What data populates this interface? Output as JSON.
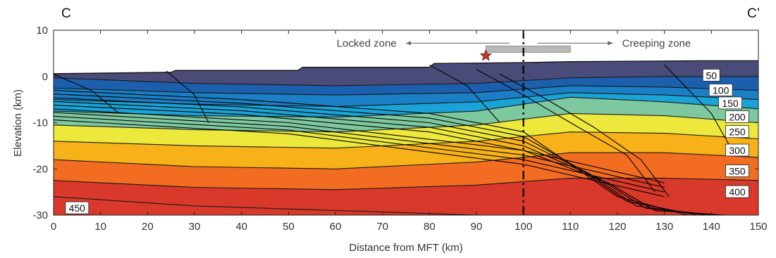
{
  "chart_data": {
    "type": "area",
    "title": "",
    "xlabel": "Distance from MFT (km)",
    "ylabel": "Elevation (km)",
    "xlim": [
      0,
      150
    ],
    "ylim": [
      -30,
      10
    ],
    "xticks": [
      0,
      10,
      20,
      30,
      40,
      50,
      60,
      70,
      80,
      90,
      100,
      110,
      120,
      130,
      140,
      150
    ],
    "yticks": [
      10,
      0,
      -10,
      -20,
      -30
    ],
    "grid": false,
    "corner_labels": {
      "left": "C",
      "right": "C’"
    },
    "annotations": {
      "locked_zone": "Locked zone",
      "creeping_zone": "Creeping zone",
      "divider_x": 100,
      "epicenter": {
        "x": 92,
        "y": 4.5,
        "color": "#c0392b"
      },
      "gray_bar": {
        "x": [
          92,
          110
        ],
        "y": [
          5.2,
          6.6
        ],
        "color": "#b8b8b8"
      }
    },
    "topography": {
      "x": [
        0,
        25,
        26,
        52,
        53,
        80,
        81,
        100,
        110,
        138,
        150
      ],
      "y": [
        0.6,
        0.9,
        1.3,
        1.3,
        2.0,
        2.0,
        2.8,
        3.0,
        3.2,
        3.4,
        3.4
      ],
      "color": "#4a4b78"
    },
    "isotherms": [
      {
        "label": "50",
        "color": "#2b3f8c",
        "x": [
          0,
          30,
          60,
          90,
          110,
          130,
          150
        ],
        "y": [
          -0.3,
          -1.5,
          -2,
          -1.5,
          -0.3,
          0,
          0
        ]
      },
      {
        "label": "100",
        "color": "#1c5fad",
        "x": [
          0,
          30,
          60,
          90,
          110,
          130,
          150
        ],
        "y": [
          -2.5,
          -3.5,
          -4,
          -3.5,
          -2,
          -2.3,
          -3
        ]
      },
      {
        "label": "150",
        "color": "#1a7fc4",
        "x": [
          0,
          30,
          60,
          90,
          110,
          130,
          150
        ],
        "y": [
          -5,
          -6,
          -6.5,
          -5.5,
          -3.5,
          -4,
          -5
        ]
      },
      {
        "label": "200",
        "color": "#19a3d6",
        "x": [
          0,
          30,
          60,
          90,
          110,
          130,
          150
        ],
        "y": [
          -7.5,
          -8.5,
          -8.8,
          -7.5,
          -4.5,
          -5.5,
          -7
        ]
      },
      {
        "label": "250",
        "color": "#7ec8a0",
        "x": [
          0,
          30,
          60,
          90,
          110,
          130,
          150
        ],
        "y": [
          -10.5,
          -11.5,
          -12,
          -10.5,
          -8,
          -8.5,
          -10
        ]
      },
      {
        "label": "300",
        "color": "#ece83c",
        "x": [
          0,
          30,
          60,
          90,
          110,
          130,
          150
        ],
        "y": [
          -14,
          -15,
          -15.5,
          -14,
          -12,
          -12.3,
          -13.5
        ]
      },
      {
        "label": "350",
        "color": "#f7b219",
        "x": [
          0,
          30,
          60,
          90,
          110,
          130,
          150
        ],
        "y": [
          -18,
          -19.5,
          -20,
          -18.5,
          -16.5,
          -16.5,
          -17.5
        ]
      },
      {
        "label": "400",
        "color": "#f26d21",
        "x": [
          0,
          30,
          60,
          90,
          110,
          130,
          150
        ],
        "y": [
          -22.5,
          -24,
          -24.5,
          -23.5,
          -22,
          -22,
          -22.5
        ]
      },
      {
        "label": "450",
        "color": "#d8392b",
        "x": [
          0,
          30,
          60,
          90,
          110,
          130,
          150
        ],
        "y": [
          -26,
          -28,
          -29,
          -30,
          -30,
          -30,
          -30
        ]
      }
    ],
    "isotherm_labels": [
      {
        "text": "50",
        "x": 140,
        "y": 0.2
      },
      {
        "text": "100",
        "x": 142,
        "y": -3
      },
      {
        "text": "150",
        "x": 144,
        "y": -5.8
      },
      {
        "text": "200",
        "x": 145.5,
        "y": -8.8
      },
      {
        "text": "250",
        "x": 145.5,
        "y": -12
      },
      {
        "text": "300",
        "x": 145.5,
        "y": -16
      },
      {
        "text": "350",
        "x": 145.5,
        "y": -20.5
      },
      {
        "text": "400",
        "x": 145.5,
        "y": -25
      },
      {
        "text": "450",
        "x": 5,
        "y": -28.5
      }
    ],
    "faults": [
      {
        "x": [
          0,
          40,
          80,
          100,
          110,
          120,
          135
        ],
        "y": [
          -3,
          -5,
          -8,
          -12,
          -19,
          -26,
          -30
        ]
      },
      {
        "x": [
          0,
          40,
          80,
          100,
          112,
          122,
          137
        ],
        "y": [
          -3.8,
          -5.8,
          -9,
          -13,
          -20,
          -27,
          -30
        ]
      },
      {
        "x": [
          0,
          40,
          80,
          100,
          114,
          124,
          139
        ],
        "y": [
          -4.6,
          -6.6,
          -10,
          -14,
          -21,
          -28,
          -30
        ]
      },
      {
        "x": [
          0,
          40,
          80,
          100,
          116,
          126,
          141
        ],
        "y": [
          -5.4,
          -7.4,
          -11,
          -15,
          -22,
          -28.5,
          -30
        ]
      },
      {
        "x": [
          0,
          40,
          80,
          100,
          118,
          128,
          143
        ],
        "y": [
          -6.2,
          -8.2,
          -12,
          -16,
          -23,
          -29,
          -30
        ]
      },
      {
        "x": [
          0,
          50,
          100,
          130
        ],
        "y": [
          -7,
          -10,
          -16,
          -23
        ]
      },
      {
        "x": [
          0,
          50,
          100,
          130
        ],
        "y": [
          -7.8,
          -10.8,
          -17,
          -24
        ]
      },
      {
        "x": [
          0,
          50,
          100,
          130
        ],
        "y": [
          -8.6,
          -11.6,
          -18,
          -25
        ]
      },
      {
        "x": [
          0,
          50,
          100,
          130
        ],
        "y": [
          -9.4,
          -12.4,
          -19,
          -26
        ]
      },
      {
        "x": [
          0,
          8,
          14
        ],
        "y": [
          0.5,
          -3,
          -8
        ]
      },
      {
        "x": [
          24,
          30,
          33
        ],
        "y": [
          1.2,
          -4,
          -10
        ]
      },
      {
        "x": [
          80,
          88,
          95
        ],
        "y": [
          2.5,
          -2,
          -10
        ]
      },
      {
        "x": [
          90,
          100,
          110,
          122,
          128
        ],
        "y": [
          1.5,
          -4,
          -10,
          -17,
          -25
        ]
      },
      {
        "x": [
          95,
          105,
          115,
          125,
          131
        ],
        "y": [
          0.5,
          -5,
          -11,
          -18,
          -26
        ]
      },
      {
        "x": [
          130,
          140,
          145
        ],
        "y": [
          2.5,
          -8,
          -17
        ]
      }
    ]
  }
}
